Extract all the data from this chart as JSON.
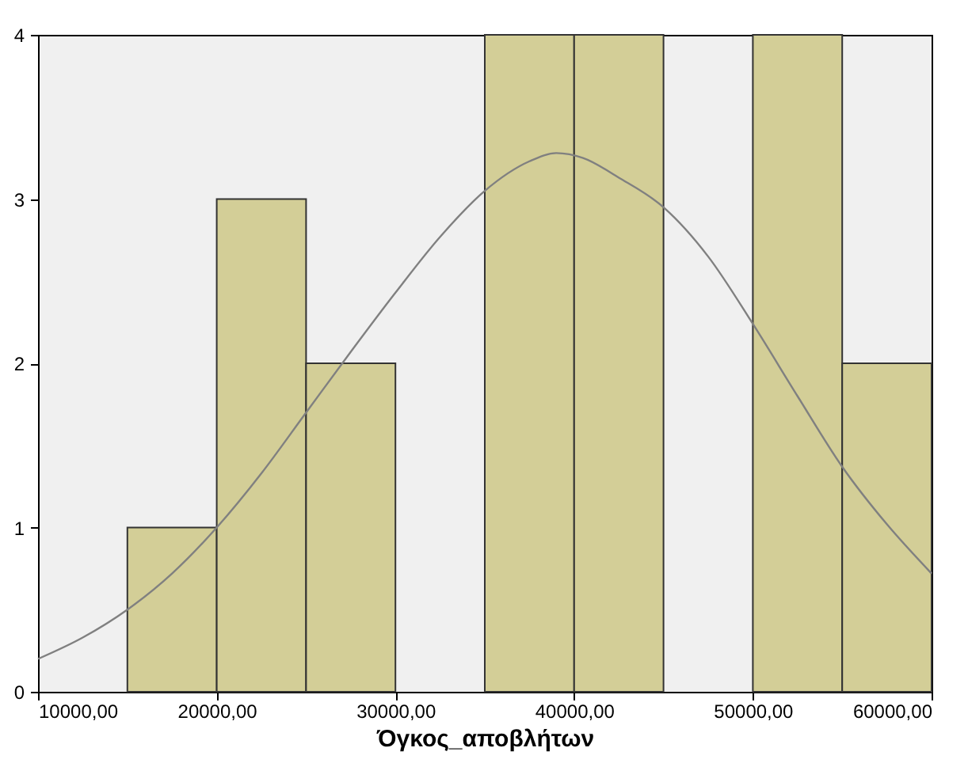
{
  "chart_data": {
    "type": "histogram",
    "xlabel": "Όγκος_αποβλήτων",
    "bins": [
      10000,
      15000,
      20000,
      25000,
      30000,
      35000,
      40000,
      45000,
      50000,
      55000,
      60000
    ],
    "values": [
      0,
      1,
      3,
      2,
      0,
      4,
      4,
      0,
      4,
      2
    ],
    "color": "#d3ce97",
    "series": [
      {
        "type": "line",
        "color": "#808080",
        "x": [
          10000,
          12500,
          15000,
          17500,
          20000,
          22500,
          25000,
          27500,
          30000,
          32500,
          35000,
          37500,
          39000,
          40500,
          42500,
          45000,
          47500,
          50000,
          52500,
          55000,
          57500,
          60000
        ],
        "values": [
          0.2,
          0.33,
          0.5,
          0.72,
          1.0,
          1.33,
          1.7,
          2.07,
          2.43,
          2.77,
          3.05,
          3.23,
          3.28,
          3.25,
          3.13,
          2.95,
          2.65,
          2.24,
          1.8,
          1.37,
          1.02,
          0.72
        ]
      }
    ],
    "xlim": [
      10000,
      60000
    ],
    "ylim": [
      0,
      4
    ],
    "xticks": [
      {
        "value": 10000,
        "label": "10000,00"
      },
      {
        "value": 20000,
        "label": "20000,00"
      },
      {
        "value": 30000,
        "label": "30000,00"
      },
      {
        "value": 40000,
        "label": "40000,00"
      },
      {
        "value": 50000,
        "label": "50000,00"
      },
      {
        "value": 60000,
        "label": "60000,00"
      }
    ],
    "yticks": [
      0,
      1,
      2,
      3,
      4
    ],
    "grid": false
  }
}
